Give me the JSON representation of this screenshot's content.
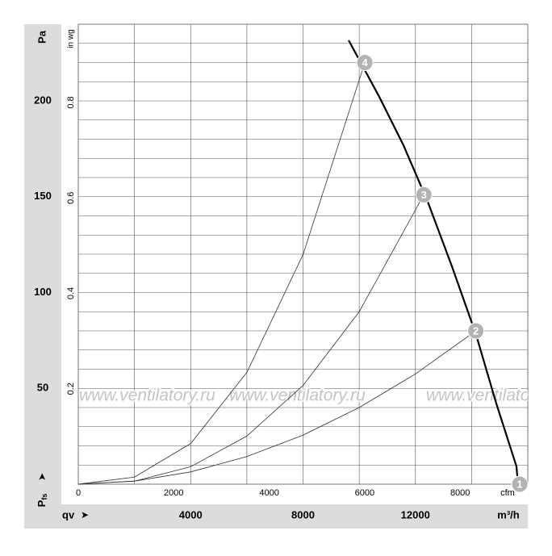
{
  "chart_data": {
    "type": "line",
    "y_label": "Pa",
    "y2_label": "in wg",
    "x_label": "m³/h",
    "x2_label": "cfm",
    "x_symbol": "qv",
    "y_symbol": "P",
    "y_symbol_sub": "fs",
    "watermark": "www.ventilatory.ru",
    "xlim": [
      0,
      16000
    ],
    "xticks": [
      4000,
      8000,
      12000
    ],
    "x2lim": [
      0,
      9417
    ],
    "x2ticks": [
      0,
      2000,
      4000,
      6000,
      8000
    ],
    "ylim": [
      0,
      240
    ],
    "yticks": [
      50,
      100,
      150,
      200
    ],
    "y2lim": [
      0,
      0.964
    ],
    "y2ticks": [
      0.2,
      0.4,
      0.6,
      0.8
    ],
    "grid": true,
    "xgrid": [
      2000,
      4000,
      6000,
      8000,
      10000,
      12000,
      14000
    ],
    "ygrid": [
      10,
      20,
      30,
      40,
      50,
      60,
      70,
      80,
      90,
      100,
      110,
      120,
      130,
      140,
      150,
      160,
      170,
      180,
      190,
      200,
      210,
      220,
      230
    ],
    "series": [
      {
        "color": "#000000",
        "width": 2.2,
        "x": [
          9623,
          10714,
          11576,
          12438,
          13299,
          14161,
          14879,
          15597,
          15626
        ],
        "values": [
          231.6,
          202.1,
          176.8,
          147.4,
          113.7,
          77.9,
          42.1,
          9.3,
          4.2
        ]
      },
      {
        "color": "#333333",
        "width": 0.8,
        "x": [
          0,
          2000,
          4000,
          6000,
          8000,
          10200
        ],
        "values": [
          0,
          3.7,
          21.2,
          58.3,
          119.8,
          220
        ]
      },
      {
        "color": "#333333",
        "width": 0.8,
        "x": [
          0,
          2000,
          4000,
          6000,
          8000,
          10000,
          12300
        ],
        "values": [
          0,
          1.6,
          9.1,
          25.1,
          51.5,
          90.0,
          151
        ]
      },
      {
        "color": "#333333",
        "width": 0.8,
        "x": [
          0,
          2000,
          4000,
          6000,
          8000,
          10000,
          12000,
          14150
        ],
        "values": [
          0,
          1.6,
          6.4,
          14.4,
          25.6,
          40,
          57.5,
          80
        ]
      }
    ],
    "operating_points": {
      "color": "#b3b3b3",
      "labels": [
        "1",
        "2",
        "3",
        "4"
      ],
      "x": [
        15713,
        14150,
        12300,
        10200
      ],
      "values": [
        0,
        80,
        151,
        220
      ]
    }
  }
}
